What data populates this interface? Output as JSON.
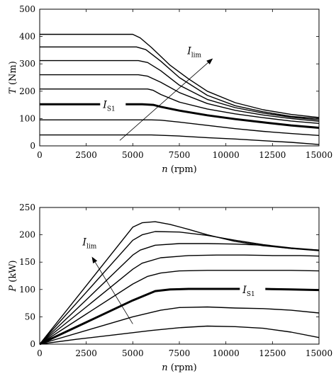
{
  "chart_data": [
    {
      "type": "line",
      "xlabel_var": "n",
      "xlabel_unit": " (rpm)",
      "ylabel_var": "T",
      "ylabel_unit": " (Nm)",
      "xlim": [
        0,
        15000
      ],
      "ylim": [
        0,
        500
      ],
      "xticks": [
        0,
        2500,
        5000,
        7500,
        10000,
        12500,
        15000
      ],
      "yticks": [
        0,
        100,
        200,
        300,
        400,
        500
      ],
      "grid": false,
      "annotations": {
        "arrow_label": "I",
        "arrow_label_sub": "lim",
        "arrow_from": [
          4300,
          20
        ],
        "arrow_to": [
          9300,
          320
        ],
        "bold_label": "I",
        "bold_label_sub": "S1",
        "bold_label_at": [
          3400,
          152
        ]
      },
      "series": [
        {
          "bold": false,
          "points": [
            [
              0,
              40
            ],
            [
              5000,
              40
            ],
            [
              6000,
              40
            ],
            [
              7500,
              36
            ],
            [
              9000,
              30
            ],
            [
              10500,
              25
            ],
            [
              12000,
              19
            ],
            [
              13500,
              13
            ],
            [
              15000,
              5
            ]
          ]
        },
        {
          "bold": false,
          "points": [
            [
              0,
              95
            ],
            [
              5000,
              95
            ],
            [
              6000,
              95
            ],
            [
              6500,
              94
            ],
            [
              7500,
              87
            ],
            [
              9000,
              75
            ],
            [
              10500,
              63
            ],
            [
              12000,
              53
            ],
            [
              13500,
              45
            ],
            [
              15000,
              38
            ]
          ]
        },
        {
          "bold": true,
          "points": [
            [
              0,
              152
            ],
            [
              5500,
              152
            ],
            [
              6100,
              150
            ],
            [
              6500,
              143
            ],
            [
              7500,
              129
            ],
            [
              9000,
              112
            ],
            [
              10500,
              98
            ],
            [
              12000,
              86
            ],
            [
              13500,
              75
            ],
            [
              15000,
              66
            ]
          ]
        },
        {
          "bold": false,
          "points": [
            [
              0,
              208
            ],
            [
              5800,
              208
            ],
            [
              6100,
              203
            ],
            [
              6500,
              188
            ],
            [
              7500,
              160
            ],
            [
              9000,
              135
            ],
            [
              10500,
              117
            ],
            [
              12000,
              103
            ],
            [
              13500,
              91
            ],
            [
              15000,
              82
            ]
          ]
        },
        {
          "bold": false,
          "points": [
            [
              0,
              260
            ],
            [
              5300,
              260
            ],
            [
              5800,
              255
            ],
            [
              6500,
              233
            ],
            [
              7500,
              195
            ],
            [
              9000,
              155
            ],
            [
              10500,
              130
            ],
            [
              12000,
              113
            ],
            [
              13500,
              100
            ],
            [
              15000,
              90
            ]
          ]
        },
        {
          "bold": false,
          "points": [
            [
              0,
              312
            ],
            [
              5300,
              312
            ],
            [
              5800,
              305
            ],
            [
              6500,
              275
            ],
            [
              7500,
              222
            ],
            [
              9000,
              170
            ],
            [
              10500,
              140
            ],
            [
              12000,
              120
            ],
            [
              13500,
              105
            ],
            [
              15000,
              95
            ]
          ]
        },
        {
          "bold": false,
          "points": [
            [
              0,
              362
            ],
            [
              5200,
              362
            ],
            [
              5700,
              352
            ],
            [
              6500,
              310
            ],
            [
              7500,
              250
            ],
            [
              9000,
              185
            ],
            [
              10500,
              147
            ],
            [
              12000,
              125
            ],
            [
              13500,
              108
            ],
            [
              15000,
              100
            ]
          ]
        },
        {
          "bold": false,
          "points": [
            [
              0,
              408
            ],
            [
              5000,
              408
            ],
            [
              5400,
              395
            ],
            [
              6000,
              360
            ],
            [
              7000,
              295
            ],
            [
              8000,
              245
            ],
            [
              9000,
              200
            ],
            [
              10500,
              158
            ],
            [
              12000,
              132
            ],
            [
              13500,
              115
            ],
            [
              15000,
              104
            ]
          ]
        }
      ]
    },
    {
      "type": "line",
      "xlabel_var": "n",
      "xlabel_unit": " (rpm)",
      "ylabel_var": "P",
      "ylabel_unit": " (kW)",
      "xlim": [
        0,
        15000
      ],
      "ylim": [
        0,
        250
      ],
      "xticks": [
        0,
        2500,
        5000,
        7500,
        10000,
        12500,
        15000
      ],
      "yticks": [
        0,
        50,
        100,
        150,
        200,
        250
      ],
      "grid": false,
      "annotations": {
        "arrow_label": "I",
        "arrow_label_sub": "lim",
        "arrow_from": [
          5000,
          37
        ],
        "arrow_to": [
          2800,
          160
        ],
        "arrow_label_at": [
          2300,
          181
        ],
        "bold_label": "I",
        "bold_label_sub": "S1",
        "bold_label_at": [
          10900,
          100
        ]
      },
      "series": [
        {
          "bold": false,
          "points": [
            [
              0,
              0
            ],
            [
              2000,
              9
            ],
            [
              4000,
              17
            ],
            [
              6000,
              25
            ],
            [
              7500,
              30
            ],
            [
              9000,
              33
            ],
            [
              10500,
              32
            ],
            [
              12000,
              29
            ],
            [
              13500,
              22
            ],
            [
              15000,
              12
            ]
          ]
        },
        {
          "bold": false,
          "points": [
            [
              0,
              0
            ],
            [
              2500,
              25
            ],
            [
              5000,
              50
            ],
            [
              6500,
              62
            ],
            [
              7500,
              67
            ],
            [
              9000,
              68
            ],
            [
              10500,
              66
            ],
            [
              12000,
              65
            ],
            [
              13500,
              62
            ],
            [
              15000,
              57
            ]
          ]
        },
        {
          "bold": true,
          "points": [
            [
              0,
              0
            ],
            [
              2500,
              40
            ],
            [
              5000,
              80
            ],
            [
              6200,
              97
            ],
            [
              7000,
              100
            ],
            [
              8000,
              101
            ],
            [
              10000,
              101
            ],
            [
              12000,
              101
            ],
            [
              13500,
              100
            ],
            [
              15000,
              99
            ]
          ]
        },
        {
          "bold": false,
          "points": [
            [
              0,
              0
            ],
            [
              2500,
              55
            ],
            [
              5000,
              110
            ],
            [
              5800,
              124
            ],
            [
              6500,
              130
            ],
            [
              7500,
              134
            ],
            [
              9000,
              135
            ],
            [
              10500,
              135
            ],
            [
              12000,
              135
            ],
            [
              13500,
              135
            ],
            [
              15000,
              134
            ]
          ]
        },
        {
          "bold": false,
          "points": [
            [
              0,
              0
            ],
            [
              2500,
              68
            ],
            [
              5000,
              137
            ],
            [
              5500,
              148
            ],
            [
              6500,
              158
            ],
            [
              8000,
              162
            ],
            [
              9500,
              163
            ],
            [
              11000,
              163
            ],
            [
              12500,
              162
            ],
            [
              14000,
              162
            ],
            [
              15000,
              161
            ]
          ]
        },
        {
          "bold": false,
          "points": [
            [
              0,
              0
            ],
            [
              2500,
              81
            ],
            [
              5000,
              163
            ],
            [
              5400,
              172
            ],
            [
              6200,
              181
            ],
            [
              7500,
              184
            ],
            [
              9000,
              184
            ],
            [
              10500,
              183
            ],
            [
              12000,
              181
            ],
            [
              13500,
              175
            ],
            [
              15000,
              172
            ]
          ]
        },
        {
          "bold": false,
          "points": [
            [
              0,
              0
            ],
            [
              2500,
              95
            ],
            [
              5000,
              190
            ],
            [
              5500,
              200
            ],
            [
              6200,
              206
            ],
            [
              7500,
              205
            ],
            [
              9000,
              199
            ],
            [
              10500,
              190
            ],
            [
              12000,
              182
            ],
            [
              13500,
              176
            ],
            [
              15000,
              172
            ]
          ]
        },
        {
          "bold": false,
          "points": [
            [
              0,
              0
            ],
            [
              2500,
              107
            ],
            [
              5000,
              214
            ],
            [
              5500,
              222
            ],
            [
              6200,
              224
            ],
            [
              7000,
              219
            ],
            [
              8000,
              210
            ],
            [
              9000,
              200
            ],
            [
              10500,
              188
            ],
            [
              12000,
              180
            ],
            [
              13500,
              175
            ],
            [
              15000,
              171
            ]
          ]
        }
      ]
    }
  ]
}
